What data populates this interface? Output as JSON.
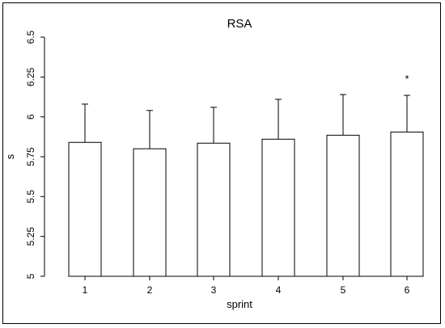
{
  "chart_data": {
    "type": "bar",
    "title": "RSA",
    "xlabel": "sprint",
    "ylabel": "s",
    "categories": [
      "1",
      "2",
      "3",
      "4",
      "5",
      "6"
    ],
    "values": [
      5.84,
      5.8,
      5.835,
      5.86,
      5.885,
      5.905
    ],
    "error_upper": [
      0.24,
      0.24,
      0.225,
      0.25,
      0.255,
      0.23
    ],
    "ylim": [
      5,
      6.5
    ],
    "yticks": [
      "5",
      "5.25",
      "5.5",
      "5.75",
      "6",
      "6.25",
      "6.5"
    ],
    "annotations": [
      {
        "category": "6",
        "text": "*"
      }
    ],
    "grid": false,
    "bar_fill": "#ffffff",
    "bar_stroke": "#000000"
  }
}
